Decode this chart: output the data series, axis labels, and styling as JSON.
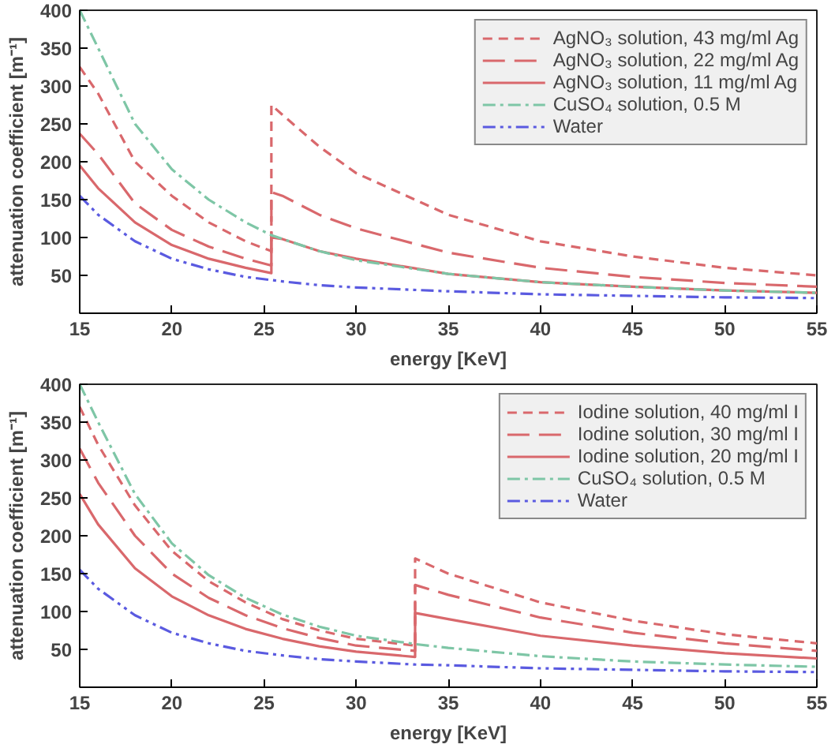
{
  "chart_data": [
    {
      "type": "line",
      "xlabel": "energy [KeV]",
      "ylabel": "attenuation coefficient [m⁻¹]",
      "xlim": [
        15,
        55
      ],
      "ylim": [
        0,
        400
      ],
      "xticks": [
        15,
        20,
        25,
        30,
        35,
        40,
        45,
        50,
        55
      ],
      "yticks": [
        50,
        100,
        150,
        200,
        250,
        300,
        350,
        400
      ],
      "grid": false,
      "legend": "top right",
      "series": [
        {
          "name": "AgNO₃ solution, 43 mg/ml Ag",
          "color": "#d9686c",
          "line_style": "dashed",
          "x": [
            15,
            16,
            18,
            20,
            22,
            24,
            25.4,
            25.4,
            26,
            28,
            30,
            35,
            40,
            45,
            50,
            55
          ],
          "values": [
            325,
            290,
            200,
            155,
            120,
            95,
            82,
            275,
            262,
            220,
            185,
            130,
            95,
            75,
            60,
            50
          ]
        },
        {
          "name": "AgNO₃ solution, 22 mg/ml Ag",
          "color": "#d9686c",
          "line_style": "longdash",
          "x": [
            15,
            16,
            18,
            20,
            22,
            24,
            25.4,
            25.4,
            26,
            28,
            30,
            35,
            40,
            45,
            50,
            55
          ],
          "values": [
            237,
            210,
            145,
            110,
            88,
            72,
            63,
            160,
            155,
            130,
            112,
            80,
            60,
            48,
            40,
            35
          ]
        },
        {
          "name": "AgNO₃ solution, 11 mg/ml Ag",
          "color": "#d9686c",
          "line_style": "solid",
          "x": [
            15,
            16,
            18,
            20,
            22,
            24,
            25.4,
            25.4,
            26,
            28,
            30,
            35,
            40,
            45,
            50,
            55
          ],
          "values": [
            195,
            165,
            120,
            90,
            72,
            60,
            53,
            100,
            98,
            82,
            72,
            52,
            41,
            35,
            30,
            27
          ]
        },
        {
          "name": "CuSO₄ solution, 0.5 M",
          "color": "#7ec6a6",
          "line_style": "dashdot",
          "x": [
            15,
            16,
            18,
            20,
            22,
            24,
            25.4,
            26,
            28,
            30,
            35,
            40,
            45,
            50,
            55
          ],
          "values": [
            400,
            350,
            250,
            190,
            150,
            120,
            103,
            98,
            82,
            70,
            52,
            41,
            35,
            30,
            27
          ]
        },
        {
          "name": "Water",
          "color": "#5a5ae0",
          "line_style": "dashdotdot",
          "x": [
            15,
            16,
            18,
            20,
            22,
            24,
            26,
            28,
            30,
            35,
            40,
            45,
            50,
            55
          ],
          "values": [
            155,
            130,
            95,
            72,
            58,
            48,
            42,
            37,
            34,
            29,
            25,
            23,
            21,
            20
          ]
        }
      ]
    },
    {
      "type": "line",
      "xlabel": "energy [KeV]",
      "ylabel": "attenuation coefficient [m⁻¹]",
      "xlim": [
        15,
        55
      ],
      "ylim": [
        0,
        400
      ],
      "xticks": [
        15,
        20,
        25,
        30,
        35,
        40,
        45,
        50,
        55
      ],
      "yticks": [
        50,
        100,
        150,
        200,
        250,
        300,
        350,
        400
      ],
      "grid": false,
      "legend": "top right",
      "series": [
        {
          "name": "Iodine solution, 40 mg/ml I",
          "color": "#d9686c",
          "line_style": "dashed",
          "x": [
            15,
            16,
            18,
            20,
            22,
            24,
            26,
            28,
            30,
            33.2,
            33.2,
            35,
            40,
            45,
            50,
            55
          ],
          "values": [
            370,
            320,
            240,
            180,
            140,
            112,
            90,
            75,
            64,
            55,
            170,
            150,
            112,
            88,
            70,
            58
          ]
        },
        {
          "name": "Iodine solution, 30 mg/ml I",
          "color": "#d9686c",
          "line_style": "longdash",
          "x": [
            15,
            16,
            18,
            20,
            22,
            24,
            26,
            28,
            30,
            33.2,
            33.2,
            35,
            40,
            45,
            50,
            55
          ],
          "values": [
            315,
            270,
            200,
            150,
            118,
            95,
            78,
            65,
            55,
            48,
            135,
            122,
            92,
            72,
            58,
            48
          ]
        },
        {
          "name": "Iodine solution, 20 mg/ml I",
          "color": "#d9686c",
          "line_style": "solid",
          "x": [
            15,
            16,
            18,
            20,
            22,
            24,
            26,
            28,
            30,
            33.2,
            33.2,
            35,
            40,
            45,
            50,
            55
          ],
          "values": [
            255,
            215,
            157,
            120,
            95,
            77,
            64,
            54,
            47,
            40,
            98,
            90,
            68,
            55,
            45,
            38
          ]
        },
        {
          "name": "CuSO₄ solution, 0.5 M",
          "color": "#7ec6a6",
          "line_style": "dashdot",
          "x": [
            15,
            16,
            18,
            20,
            22,
            24,
            26,
            28,
            30,
            33.2,
            35,
            40,
            45,
            50,
            55
          ],
          "values": [
            400,
            350,
            255,
            190,
            148,
            118,
            96,
            80,
            68,
            57,
            52,
            41,
            34,
            30,
            27
          ]
        },
        {
          "name": "Water",
          "color": "#5a5ae0",
          "line_style": "dashdotdot",
          "x": [
            15,
            16,
            18,
            20,
            22,
            24,
            26,
            28,
            30,
            33.2,
            35,
            40,
            45,
            50,
            55
          ],
          "values": [
            155,
            130,
            95,
            72,
            58,
            48,
            42,
            37,
            34,
            30,
            29,
            25,
            23,
            21,
            20
          ]
        }
      ]
    }
  ]
}
